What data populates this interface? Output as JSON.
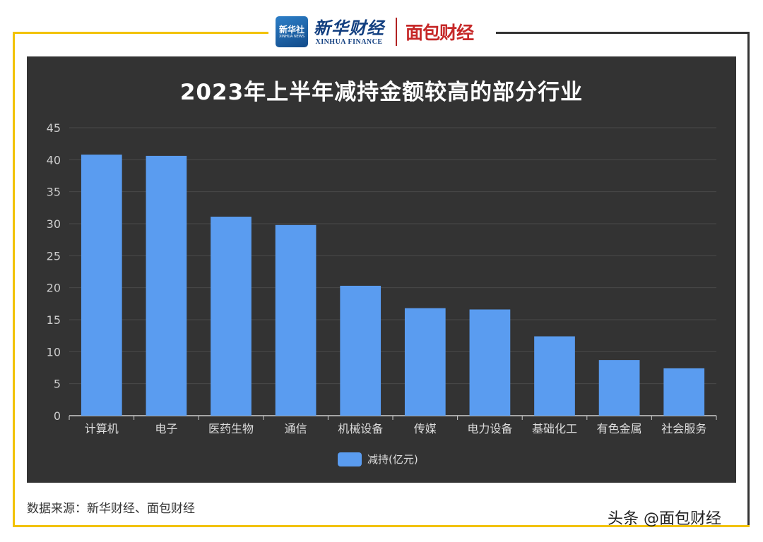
{
  "header": {
    "xinhua_badge_cn": "新华社",
    "xinhua_badge_en": "XINHUA NEWS",
    "xinhua_name_cn": "新华财经",
    "xinhua_name_en": "XINHUA FINANCE",
    "mianbao_logo": "面包财经"
  },
  "footer": {
    "source": "数据来源：新华财经、面包财经",
    "watermark": "头条 @面包财经"
  },
  "colors": {
    "bar": "#5a9cf0",
    "panel": "#333333",
    "frame_accent": "#f2c200"
  },
  "chart_data": {
    "type": "bar",
    "title": "2023年上半年减持金额较高的部分行业",
    "categories": [
      "计算机",
      "电子",
      "医药生物",
      "通信",
      "机械设备",
      "传媒",
      "电力设备",
      "基础化工",
      "有色金属",
      "社会服务"
    ],
    "series": [
      {
        "name": "减持(亿元)",
        "values": [
          40.8,
          40.6,
          31.1,
          29.8,
          20.3,
          16.8,
          16.6,
          12.4,
          8.7,
          7.4
        ]
      }
    ],
    "ylim": [
      0,
      45
    ],
    "yticks": [
      0,
      5,
      10,
      15,
      20,
      25,
      30,
      35,
      40,
      45
    ],
    "xlabel": "",
    "ylabel": "",
    "grid": true,
    "legend": "bottom-center"
  }
}
